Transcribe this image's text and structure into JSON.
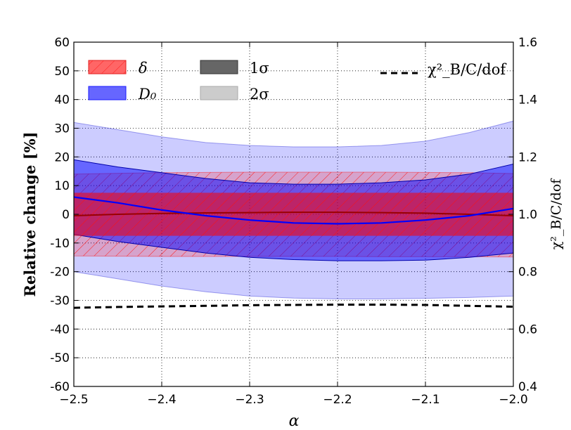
{
  "chart_data": {
    "type": "area",
    "xlabel": "α",
    "ylabel": "Relative change [%]",
    "y2label": "χ²_B/C/dof",
    "xlim": [
      -2.5,
      -2.0
    ],
    "ylim": [
      -60,
      60
    ],
    "y2lim": [
      0.4,
      1.6
    ],
    "xticks": [
      "−2.5",
      "−2.4",
      "−2.3",
      "−2.2",
      "−2.1",
      "−2.0"
    ],
    "yticks": [
      "60",
      "50",
      "40",
      "30",
      "20",
      "10",
      "0",
      "-10",
      "-20",
      "-30",
      "-40",
      "-50",
      "-60"
    ],
    "y2ticks": [
      "1.6",
      "1.4",
      "1.2",
      "1.0",
      "0.8",
      "0.6",
      "0.4"
    ],
    "grid": true,
    "x": [
      -2.5,
      -2.45,
      -2.4,
      -2.35,
      -2.3,
      -2.25,
      -2.2,
      -2.15,
      -2.1,
      -2.05,
      -2.0
    ],
    "series": [
      {
        "name": "δ",
        "key": "delta",
        "color": "#ff4d4d",
        "central": [
          -0.5,
          0.0,
          0.3,
          0.5,
          0.6,
          0.7,
          0.7,
          0.6,
          0.4,
          0.0,
          -0.5
        ],
        "sigma1": {
          "upper": [
            7.5,
            7.5,
            7.5,
            7.5,
            7.5,
            7.5,
            7.5,
            7.5,
            7.5,
            7.5,
            7.5
          ],
          "lower": [
            -7.5,
            -7.5,
            -7.5,
            -7.5,
            -7.5,
            -7.5,
            -7.5,
            -7.5,
            -7.5,
            -7.5,
            -7.5
          ]
        },
        "sigma2": {
          "upper": [
            14,
            14.3,
            14.5,
            14.6,
            14.7,
            14.7,
            14.7,
            14.7,
            14.6,
            14.5,
            14.2
          ],
          "lower": [
            -14.5,
            -14.6,
            -14.7,
            -14.7,
            -14.7,
            -14.7,
            -14.7,
            -14.8,
            -14.8,
            -14.8,
            -14.9
          ]
        }
      },
      {
        "name": "D₀",
        "key": "d0",
        "color": "#4d4dff",
        "central": [
          6,
          4,
          1.5,
          -0.5,
          -2,
          -3,
          -3.3,
          -3,
          -2,
          -0.5,
          2
        ],
        "sigma1": {
          "upper": [
            19,
            16.5,
            14.5,
            12.5,
            11,
            10.5,
            10.5,
            11,
            12,
            14,
            17.5
          ],
          "lower": [
            -7,
            -9.5,
            -11.5,
            -13.5,
            -15,
            -15.8,
            -16.2,
            -16.2,
            -16,
            -15,
            -13.5
          ]
        },
        "sigma2": {
          "upper": [
            32,
            29.5,
            27,
            25,
            24,
            23.5,
            23.5,
            24,
            25.5,
            28.5,
            32.5
          ],
          "lower": [
            -20,
            -22.5,
            -25,
            -27,
            -28.5,
            -29.2,
            -29.5,
            -29.5,
            -29.3,
            -29,
            -28.5
          ]
        }
      }
    ],
    "chi2": {
      "name": "χ²_B/C/dof",
      "axis": "right",
      "style": "dashed",
      "values": [
        0.674,
        0.677,
        0.679,
        0.681,
        0.683,
        0.684,
        0.685,
        0.685,
        0.684,
        0.681,
        0.678
      ]
    },
    "legend": [
      {
        "label": "δ",
        "key": "delta"
      },
      {
        "label": "1σ",
        "key": "s1"
      },
      {
        "label": "χ²_B/C/dof",
        "key": "chi"
      },
      {
        "label": "D₀",
        "key": "d0"
      },
      {
        "label": "2σ",
        "key": "s2"
      }
    ]
  }
}
